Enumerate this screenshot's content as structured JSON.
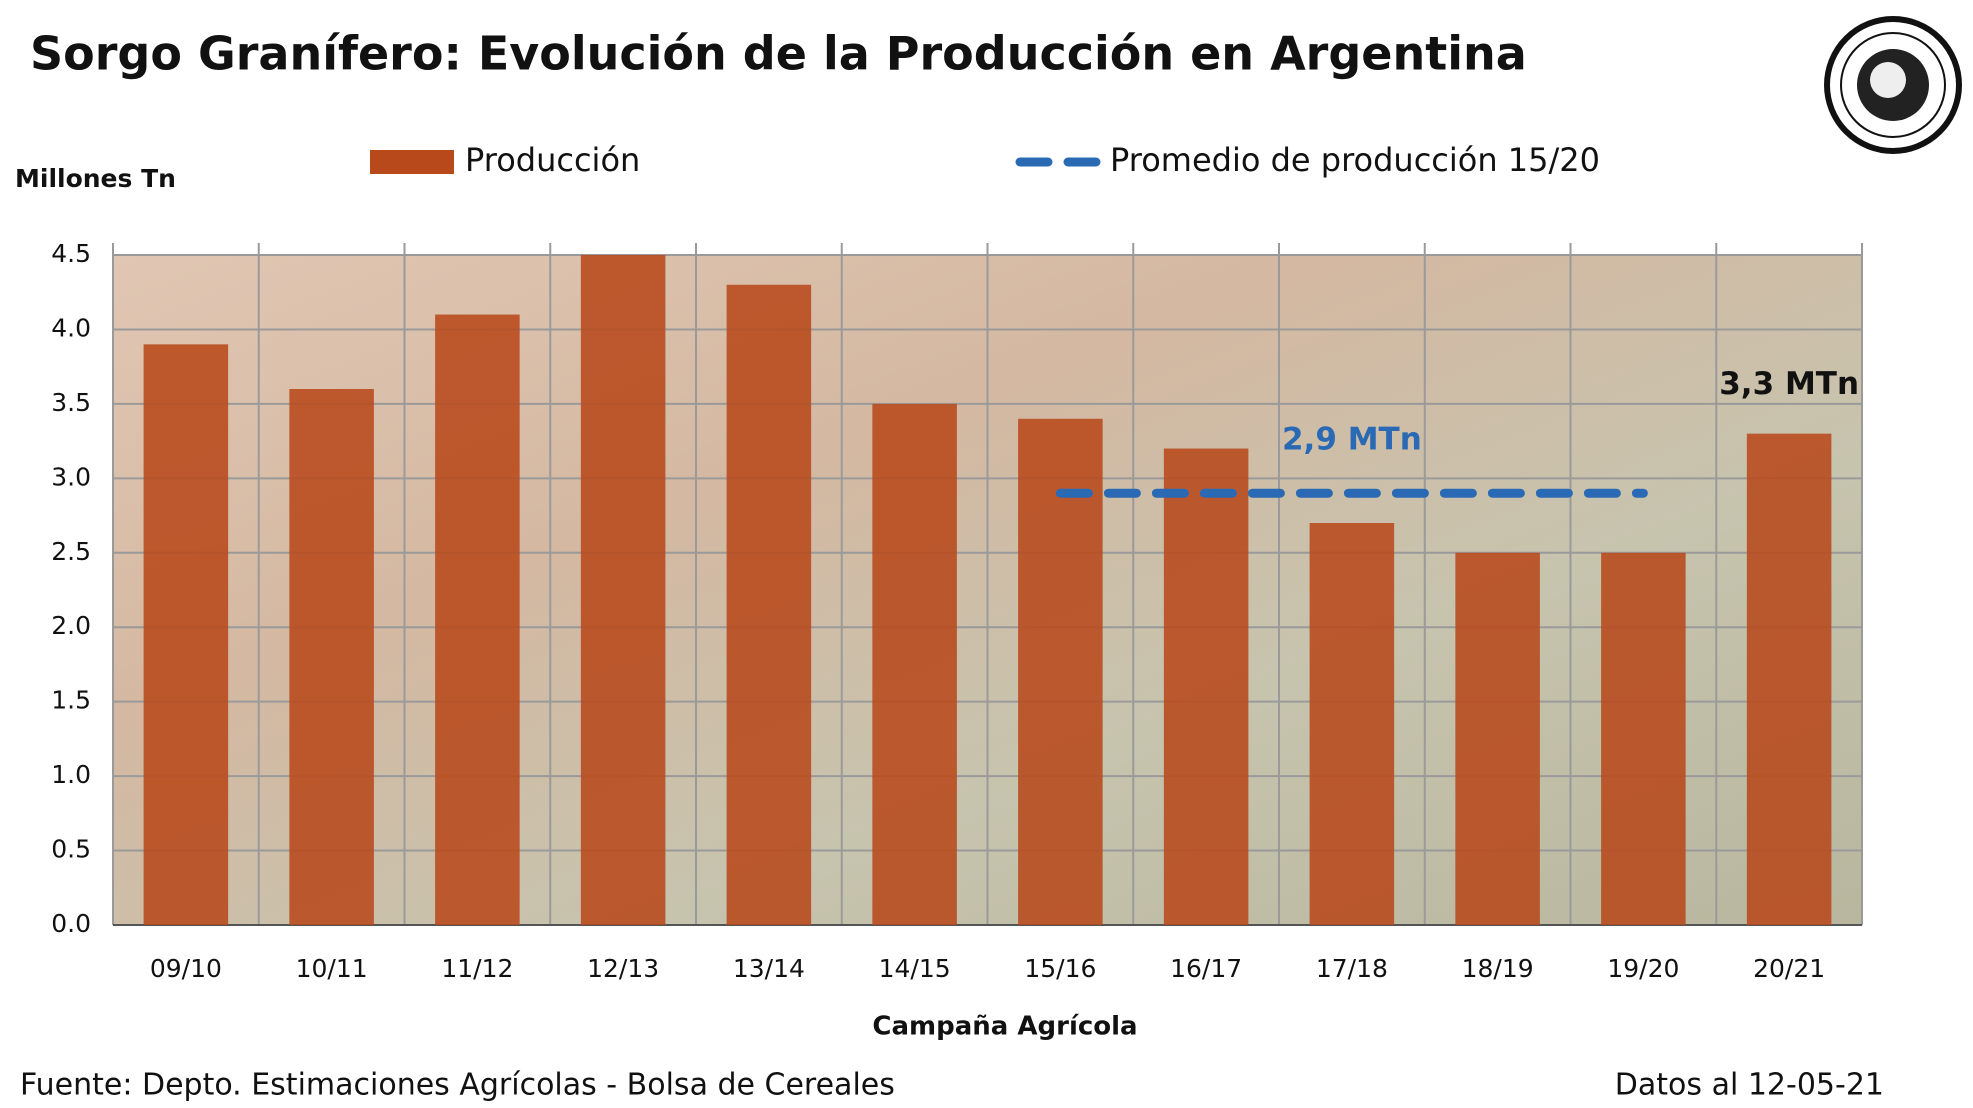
{
  "chart_data": {
    "type": "bar",
    "title": "Sorgo Granífero: Evolución de la Producción en Argentina",
    "y_label": "Millones Tn",
    "x_label": "Campaña Agrícola",
    "source": "Fuente: Depto. Estimaciones Agrícolas - Bolsa de Cereales",
    "date_note": "Datos al 12-05-21",
    "categories": [
      "09/10",
      "10/11",
      "11/12",
      "12/13",
      "13/14",
      "14/15",
      "15/16",
      "16/17",
      "17/18",
      "18/19",
      "19/20",
      "20/21"
    ],
    "series": [
      {
        "name": "Producción",
        "type": "bar",
        "color": "#b8491b",
        "values": [
          3.9,
          3.6,
          4.1,
          4.5,
          4.3,
          3.5,
          3.4,
          3.2,
          2.7,
          2.5,
          2.5,
          3.3
        ],
        "value_labels": [
          null,
          null,
          null,
          null,
          null,
          null,
          null,
          null,
          null,
          null,
          null,
          "3,3 MTn"
        ]
      },
      {
        "name": "Promedio de producción 15/20",
        "type": "line",
        "dashed": true,
        "color": "#2a6ab4",
        "values": [
          null,
          null,
          null,
          null,
          null,
          null,
          2.9,
          2.9,
          2.9,
          2.9,
          2.9,
          null
        ],
        "value_labels": [
          null,
          null,
          null,
          null,
          null,
          null,
          null,
          null,
          "2,9 MTn",
          null,
          null,
          null
        ]
      }
    ],
    "ylim": [
      0,
      4.5
    ],
    "yticks": [
      {
        "value": 0,
        "label": "0.0"
      },
      0.5,
      {
        "value": 1,
        "label": "1.0"
      },
      1.5,
      {
        "value": 2,
        "label": "2.0"
      },
      2.5,
      {
        "value": 3,
        "label": "3.0"
      },
      3.5,
      {
        "value": 4,
        "label": "4.0"
      },
      4.5
    ],
    "grid": true
  }
}
